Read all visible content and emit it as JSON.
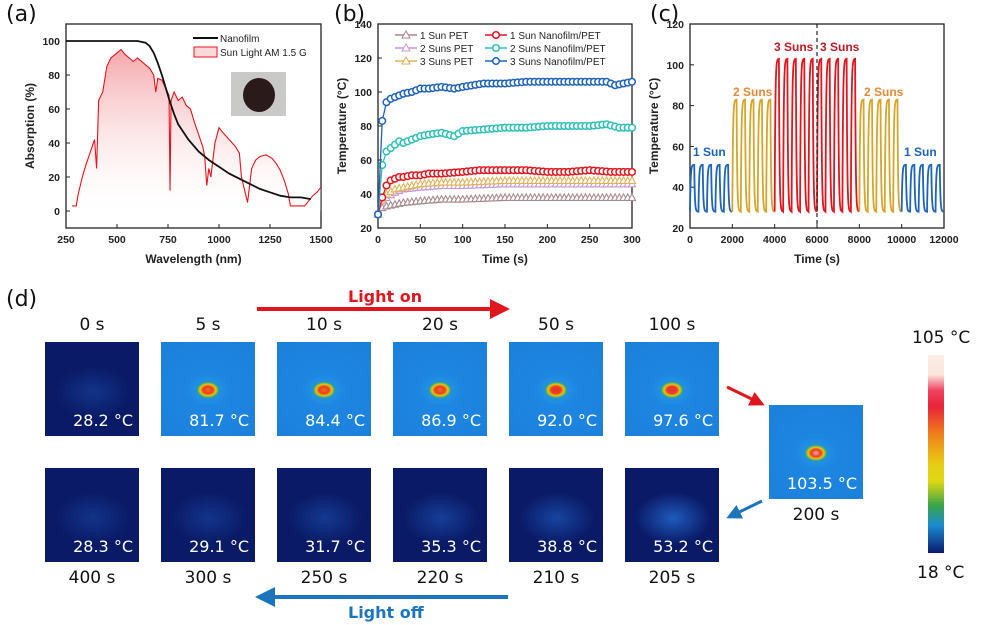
{
  "panels": {
    "a": "(a)",
    "b": "(b)",
    "c": "(c)",
    "d": "(d)"
  },
  "chart_data": [
    {
      "id": "a",
      "type": "line",
      "title": "",
      "xlabel": "Wavelength (nm)",
      "ylabel": "Absorption (%)",
      "xlim": [
        250,
        1500
      ],
      "ylim": [
        -10,
        110
      ],
      "xticks": [
        250,
        500,
        750,
        1000,
        1250,
        1500
      ],
      "yticks": [
        0,
        20,
        40,
        60,
        80,
        100
      ],
      "legend_position": "top-right",
      "inset": "photo of dark circular nanofilm sample",
      "series": [
        {
          "name": "Nanofilm",
          "color": "#111111",
          "x": [
            250,
            300,
            400,
            500,
            600,
            640,
            660,
            680,
            700,
            720,
            740,
            760,
            780,
            800,
            850,
            900,
            950,
            1000,
            1050,
            1100,
            1150,
            1200,
            1250,
            1300,
            1350,
            1400,
            1450
          ],
          "y": [
            100,
            100,
            100,
            100,
            100,
            99,
            97,
            93,
            87,
            80,
            72,
            64,
            57,
            51,
            42,
            35,
            30,
            26,
            22,
            19,
            16,
            13,
            11,
            9,
            8,
            8,
            7
          ]
        },
        {
          "name": "Sun Light AM 1.5 G",
          "color": "#e8131b",
          "fill": "#f7c6c8",
          "x": [
            280,
            300,
            310,
            330,
            350,
            370,
            390,
            400,
            410,
            430,
            450,
            470,
            500,
            520,
            540,
            560,
            580,
            600,
            620,
            640,
            660,
            680,
            690,
            700,
            720,
            740,
            755,
            760,
            765,
            780,
            800,
            820,
            840,
            860,
            880,
            900,
            920,
            930,
            940,
            950,
            960,
            980,
            1000,
            1020,
            1050,
            1080,
            1100,
            1110,
            1130,
            1140,
            1160,
            1180,
            1200,
            1230,
            1260,
            1280,
            1300,
            1320,
            1340,
            1350,
            1360,
            1400,
            1420,
            1440,
            1460,
            1480,
            1500
          ],
          "y": [
            3,
            3,
            10,
            20,
            28,
            35,
            42,
            25,
            65,
            70,
            85,
            90,
            93,
            95,
            92,
            90,
            88,
            90,
            88,
            86,
            84,
            80,
            70,
            78,
            77,
            72,
            68,
            12,
            65,
            70,
            65,
            67,
            62,
            60,
            52,
            45,
            38,
            32,
            15,
            25,
            20,
            40,
            49,
            46,
            42,
            38,
            34,
            20,
            10,
            5,
            25,
            30,
            32,
            33,
            31,
            28,
            24,
            18,
            10,
            3,
            3,
            3,
            3,
            6,
            9,
            11,
            14
          ]
        }
      ]
    },
    {
      "id": "b",
      "type": "line",
      "title": "",
      "xlabel": "Time (s)",
      "ylabel": "Temperature (°C)",
      "xlim": [
        0,
        300
      ],
      "ylim": [
        20,
        140
      ],
      "xticks": [
        0,
        50,
        100,
        150,
        200,
        250,
        300
      ],
      "yticks": [
        20,
        40,
        60,
        80,
        100,
        120,
        140
      ],
      "legend_position": "top",
      "series": [
        {
          "name": "1 Sun PET",
          "color": "#a88a8e",
          "marker": "triangle",
          "x": [
            0,
            5,
            10,
            20,
            30,
            50,
            75,
            100,
            150,
            200,
            250,
            300
          ],
          "y": [
            28,
            32,
            33,
            34,
            35,
            36,
            37,
            37,
            38,
            38,
            38,
            38
          ]
        },
        {
          "name": "2 Suns PET",
          "color": "#c49ad8",
          "marker": "triangle",
          "x": [
            0,
            5,
            10,
            20,
            30,
            50,
            75,
            100,
            150,
            200,
            250,
            300
          ],
          "y": [
            28,
            36,
            38,
            41,
            43,
            44,
            45,
            45,
            46,
            46,
            46,
            46
          ]
        },
        {
          "name": "3 Suns PET",
          "color": "#e0b25a",
          "marker": "triangle",
          "x": [
            0,
            5,
            10,
            20,
            30,
            50,
            75,
            100,
            150,
            200,
            250,
            300
          ],
          "y": [
            28,
            37,
            40,
            43,
            44,
            46,
            47,
            47,
            48,
            48,
            48,
            48
          ]
        },
        {
          "name": "1 Sun Nanofilm/PET",
          "color": "#e0161f",
          "marker": "circle",
          "x": [
            0,
            5,
            10,
            15,
            20,
            25,
            30,
            40,
            50,
            60,
            75,
            100,
            120,
            150,
            175,
            200,
            225,
            250,
            275,
            300
          ],
          "y": [
            28,
            38,
            45,
            48,
            49,
            50,
            50,
            51,
            51,
            52,
            52,
            53,
            54,
            54,
            54,
            53,
            53,
            54,
            53,
            53
          ]
        },
        {
          "name": "2 Suns Nanofilm/PET",
          "color": "#2fbfb6",
          "marker": "circle",
          "x": [
            0,
            5,
            10,
            15,
            20,
            25,
            30,
            40,
            50,
            60,
            75,
            90,
            100,
            125,
            150,
            175,
            200,
            225,
            250,
            270,
            285,
            300
          ],
          "y": [
            28,
            57,
            65,
            67,
            69,
            71,
            70,
            72,
            74,
            75,
            76,
            74,
            77,
            78,
            79,
            79,
            80,
            80,
            80,
            81,
            79,
            79
          ]
        },
        {
          "name": "3 Suns Nanofilm/PET",
          "color": "#1e63b8",
          "marker": "circle",
          "x": [
            0,
            5,
            10,
            15,
            20,
            25,
            30,
            40,
            50,
            60,
            75,
            90,
            100,
            125,
            150,
            175,
            200,
            225,
            250,
            270,
            280,
            300
          ],
          "y": [
            28,
            83,
            94,
            96,
            97,
            98,
            99,
            100,
            102,
            102,
            103,
            102,
            103,
            105,
            105,
            106,
            106,
            106,
            106,
            106,
            104,
            106
          ]
        }
      ]
    },
    {
      "id": "c",
      "type": "line",
      "title": "",
      "xlabel": "Time (s)",
      "ylabel": "Temperature (°C)",
      "xlim": [
        0,
        12000
      ],
      "ylim": [
        20,
        120
      ],
      "xticks": [
        0,
        2000,
        4000,
        6000,
        8000,
        10000,
        12000
      ],
      "yticks": [
        20,
        40,
        60,
        80,
        100,
        120
      ],
      "vline_x": 6000,
      "cycle_period_s": 400,
      "baseline_c": 28,
      "segments": [
        {
          "label": "1 Sun",
          "color": "#1e63b8",
          "x_start": 0,
          "x_end": 2000,
          "peak": 51
        },
        {
          "label": "2 Suns",
          "color": "#d4a72c",
          "label_color": "#e58a3a",
          "x_start": 2000,
          "x_end": 4000,
          "peak": 83
        },
        {
          "label": "3 Suns",
          "color": "#e0161f",
          "label_color": "#c01a24",
          "x_start": 4000,
          "x_end": 6000,
          "peak": 103
        },
        {
          "label": "3 Suns",
          "color": "#e0161f",
          "label_color": "#c01a24",
          "x_start": 6000,
          "x_end": 8000,
          "peak": 103
        },
        {
          "label": "2 Suns",
          "color": "#d4a72c",
          "label_color": "#e58a3a",
          "x_start": 8000,
          "x_end": 10000,
          "peak": 83
        },
        {
          "label": "1 Sun",
          "color": "#1e63b8",
          "x_start": 10000,
          "x_end": 12000,
          "peak": 51
        }
      ]
    }
  ],
  "thermal": {
    "light_on": {
      "label": "Light on",
      "color": "#e0161f"
    },
    "light_off": {
      "label": "Light off",
      "color": "#1c75bc"
    },
    "top_row": [
      {
        "time": "0 s",
        "temp": "28.2 °C",
        "value": 28.2
      },
      {
        "time": "5 s",
        "temp": "81.7 °C",
        "value": 81.7
      },
      {
        "time": "10 s",
        "temp": "84.4 °C",
        "value": 84.4
      },
      {
        "time": "20 s",
        "temp": "86.9 °C",
        "value": 86.9
      },
      {
        "time": "50 s",
        "temp": "92.0 °C",
        "value": 92.0
      },
      {
        "time": "100 s",
        "temp": "97.6 °C",
        "value": 97.6
      }
    ],
    "peak": {
      "time": "200 s",
      "temp": "103.5 °C",
      "value": 103.5
    },
    "bottom_row": [
      {
        "time": "400 s",
        "temp": "28.3 °C",
        "value": 28.3
      },
      {
        "time": "300 s",
        "temp": "29.1 °C",
        "value": 29.1
      },
      {
        "time": "250 s",
        "temp": "31.7 °C",
        "value": 31.7
      },
      {
        "time": "220 s",
        "temp": "35.3 °C",
        "value": 35.3
      },
      {
        "time": "210 s",
        "temp": "38.8 °C",
        "value": 38.8
      },
      {
        "time": "205 s",
        "temp": "53.2 °C",
        "value": 53.2
      }
    ],
    "colorbar": {
      "max": "105 °C",
      "min": "18 °C",
      "max_value": 105,
      "min_value": 18
    }
  }
}
